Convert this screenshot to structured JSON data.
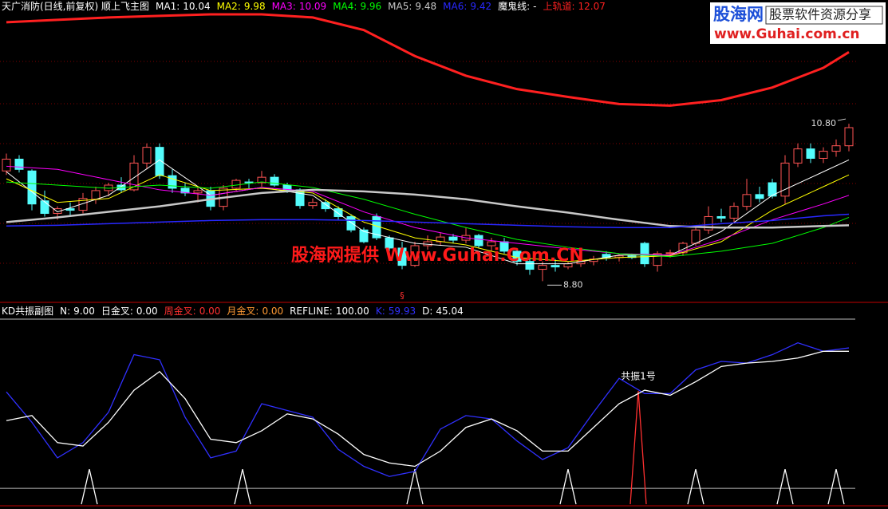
{
  "logo": {
    "brand": "股海网",
    "slogan": "股票软件资源分享",
    "url": "www.Guhai.com.cn"
  },
  "watermark": "股海网提供 Www.Guhai.Com.CN",
  "chart_data": [
    {
      "type": "candlestick",
      "title": "天广消防(日线,前复权) 顺上飞主图",
      "up_color": "#ff5454",
      "down_color": "#54fcfc",
      "ylim": [
        8.54,
        12.22
      ],
      "open": [
        10.2,
        10.35,
        10.2,
        9.82,
        9.66,
        9.72,
        9.7,
        9.84,
        9.95,
        10.02,
        9.96,
        10.3,
        10.5,
        10.14,
        9.98,
        9.92,
        9.95,
        9.75,
        9.98,
        10.06,
        10.05,
        10.12,
        10.02,
        9.96,
        9.76,
        9.8,
        9.72,
        9.62,
        9.45,
        9.62,
        9.35,
        9.22,
        9.0,
        9.25,
        9.3,
        9.36,
        9.32,
        9.38,
        9.25,
        9.3,
        9.18,
        9.05,
        8.95,
        9.0,
        8.98,
        9.02,
        9.05,
        9.14,
        9.1,
        9.12,
        9.28,
        9.0,
        9.15,
        9.16,
        9.28,
        9.45,
        9.62,
        9.6,
        9.75,
        9.9,
        10.05,
        9.88,
        10.3,
        10.48,
        10.36,
        10.45,
        10.52
      ],
      "high": [
        10.42,
        10.4,
        10.22,
        9.95,
        9.75,
        9.8,
        9.92,
        10.0,
        10.05,
        10.12,
        10.4,
        10.55,
        10.55,
        10.22,
        10.05,
        10.0,
        10.0,
        10.02,
        10.1,
        10.1,
        10.2,
        10.16,
        10.05,
        9.98,
        9.85,
        9.84,
        9.75,
        9.65,
        9.48,
        9.66,
        9.38,
        9.3,
        9.3,
        9.38,
        9.42,
        9.4,
        9.48,
        9.4,
        9.35,
        9.35,
        9.22,
        9.1,
        9.05,
        9.08,
        9.05,
        9.1,
        9.12,
        9.18,
        9.14,
        9.15,
        9.3,
        9.18,
        9.2,
        9.3,
        9.5,
        9.75,
        9.72,
        9.8,
        10.1,
        10.0,
        10.1,
        10.4,
        10.55,
        10.55,
        10.5,
        10.6,
        10.8
      ],
      "low": [
        10.15,
        10.18,
        9.7,
        9.62,
        9.58,
        9.64,
        9.66,
        9.78,
        9.88,
        9.92,
        9.94,
        10.22,
        10.1,
        9.92,
        9.88,
        9.8,
        9.7,
        9.7,
        9.94,
        9.98,
        10.0,
        10.0,
        9.92,
        9.72,
        9.72,
        9.68,
        9.58,
        9.42,
        9.28,
        9.32,
        9.18,
        8.95,
        8.98,
        9.2,
        9.25,
        9.28,
        9.28,
        9.22,
        9.18,
        9.15,
        9.0,
        8.88,
        8.8,
        8.92,
        8.95,
        8.98,
        9.0,
        9.06,
        9.05,
        9.08,
        8.98,
        8.92,
        9.1,
        9.12,
        9.25,
        9.4,
        9.55,
        9.55,
        9.7,
        9.8,
        9.85,
        9.78,
        10.25,
        10.3,
        10.3,
        10.38,
        10.45
      ],
      "close": [
        10.35,
        10.22,
        9.78,
        9.66,
        9.72,
        9.7,
        9.85,
        9.95,
        10.02,
        9.96,
        10.3,
        10.5,
        10.14,
        9.98,
        9.92,
        9.95,
        9.75,
        9.98,
        10.08,
        10.05,
        10.12,
        10.02,
        9.96,
        9.76,
        9.8,
        9.72,
        9.62,
        9.45,
        9.3,
        9.35,
        9.22,
        9.0,
        9.25,
        9.3,
        9.36,
        9.32,
        9.38,
        9.25,
        9.3,
        9.18,
        9.05,
        8.95,
        9.0,
        8.98,
        9.02,
        9.05,
        9.08,
        9.1,
        9.12,
        9.1,
        9.02,
        9.15,
        9.16,
        9.28,
        9.45,
        9.62,
        9.6,
        9.75,
        9.9,
        9.85,
        9.88,
        10.3,
        10.48,
        10.36,
        10.45,
        10.52,
        10.75
      ],
      "series": [
        {
          "name": "MA1:",
          "readout": "10.04",
          "color": "#ffffff",
          "width": 1,
          "x": [
            0,
            4,
            8,
            12,
            16,
            20,
            24,
            28,
            32,
            36,
            40,
            44,
            48,
            52,
            56,
            60,
            64,
            66
          ],
          "values": [
            10.19,
            9.68,
            9.89,
            10.34,
            9.89,
            9.99,
            9.89,
            9.43,
            9.28,
            9.23,
            9.02,
            9.02,
            9.13,
            9.13,
            9.43,
            9.89,
            10.19,
            10.34
          ]
        },
        {
          "name": "MA2:",
          "readout": "9.98",
          "color": "#ffff00",
          "width": 1,
          "x": [
            0,
            4,
            8,
            12,
            16,
            20,
            24,
            28,
            32,
            36,
            40,
            44,
            48,
            52,
            56,
            60,
            64,
            66
          ],
          "values": [
            10.1,
            9.8,
            9.85,
            10.15,
            9.95,
            9.98,
            9.92,
            9.55,
            9.35,
            9.26,
            9.1,
            9.05,
            9.1,
            9.12,
            9.3,
            9.7,
            10.0,
            10.15
          ]
        },
        {
          "name": "MA3:",
          "readout": "10.09",
          "color": "#ff00ff",
          "width": 1,
          "x": [
            0,
            4,
            8,
            12,
            16,
            20,
            24,
            28,
            32,
            36,
            40,
            44,
            48,
            52,
            56,
            60,
            64,
            66
          ],
          "values": [
            10.26,
            10.22,
            10.09,
            9.96,
            9.89,
            9.99,
            9.94,
            9.68,
            9.48,
            9.35,
            9.28,
            9.21,
            9.15,
            9.13,
            9.33,
            9.58,
            9.78,
            9.89
          ]
        },
        {
          "name": "MA4:",
          "readout": "9.96",
          "color": "#00ff00",
          "width": 1,
          "x": [
            0,
            4,
            8,
            12,
            16,
            20,
            24,
            28,
            32,
            36,
            40,
            44,
            48,
            52,
            56,
            60,
            64,
            66
          ],
          "values": [
            10.06,
            10.02,
            9.98,
            10.02,
            9.98,
            10.06,
            9.99,
            9.84,
            9.65,
            9.48,
            9.33,
            9.23,
            9.15,
            9.11,
            9.18,
            9.28,
            9.48,
            9.61
          ]
        },
        {
          "name": "MA5:",
          "readout": "9.48",
          "color": "#c8c8c8",
          "width": 2.5,
          "x": [
            0,
            4,
            8,
            12,
            16,
            20,
            24,
            28,
            32,
            36,
            40,
            44,
            48,
            52,
            56,
            60,
            64,
            66
          ],
          "values": [
            9.55,
            9.61,
            9.68,
            9.75,
            9.84,
            9.92,
            9.96,
            9.94,
            9.9,
            9.84,
            9.75,
            9.67,
            9.58,
            9.5,
            9.48,
            9.48,
            9.5,
            9.51
          ]
        },
        {
          "name": "MA6:",
          "readout": "9.42",
          "color": "#2828ff",
          "width": 1.5,
          "x": [
            0,
            4,
            8,
            12,
            16,
            20,
            24,
            28,
            32,
            36,
            40,
            44,
            48,
            52,
            56,
            60,
            64,
            66
          ],
          "values": [
            9.5,
            9.51,
            9.53,
            9.55,
            9.57,
            9.58,
            9.58,
            9.57,
            9.55,
            9.53,
            9.51,
            9.49,
            9.48,
            9.48,
            9.53,
            9.57,
            9.63,
            9.65
          ]
        },
        {
          "name": "魔鬼线:",
          "readout": "-",
          "color": "#ffffff",
          "width": 1,
          "x": [],
          "values": []
        },
        {
          "name": "上轨道:",
          "readout": "12.07",
          "color": "#ff2020",
          "width": 3,
          "x": [
            0,
            4,
            8,
            12,
            16,
            20,
            24,
            28,
            32,
            36,
            40,
            44,
            48,
            52,
            56,
            60,
            64,
            66
          ],
          "values": [
            12.09,
            12.12,
            12.15,
            12.17,
            12.19,
            12.19,
            12.15,
            11.99,
            11.66,
            11.41,
            11.24,
            11.14,
            11.05,
            11.03,
            11.1,
            11.26,
            11.51,
            11.71
          ]
        }
      ],
      "annotations": [
        {
          "x": 66,
          "value": 10.8,
          "label": "10.80"
        },
        {
          "x": 42,
          "value": 8.8,
          "label": "8.80"
        }
      ],
      "marker": {
        "text": "§",
        "x": 31
      }
    },
    {
      "type": "line",
      "title": "KD共振副图",
      "ylim": [
        -9.4,
        100
      ],
      "readouts": [
        {
          "name": "N:",
          "readout": "9.00",
          "color": "#ffffff"
        },
        {
          "name": "日金叉:",
          "readout": "0.00",
          "color": "#ffffff"
        },
        {
          "name": "周金叉:",
          "readout": "0.00",
          "color": "#ff3030"
        },
        {
          "name": "月金叉:",
          "readout": "0.00",
          "color": "#ff9933"
        },
        {
          "name": "REFLINE:",
          "readout": "100.00",
          "color": "#ffffff"
        }
      ],
      "hlines": [
        100,
        0
      ],
      "series": [
        {
          "name": "K:",
          "readout": "59.93",
          "color": "#3030ff",
          "width": 1.3,
          "x": [
            0,
            2,
            4,
            6,
            8,
            10,
            12,
            14,
            16,
            18,
            20,
            22,
            24,
            26,
            28,
            30,
            32,
            34,
            36,
            38,
            40,
            42,
            44,
            46,
            48,
            50,
            52,
            54,
            56,
            58,
            60,
            62,
            64,
            66
          ],
          "values": [
            57,
            39,
            18,
            27,
            45,
            79,
            76,
            42,
            18,
            22,
            50,
            46,
            42,
            23,
            13,
            7,
            10,
            35,
            43,
            41,
            28,
            17,
            24,
            45,
            65,
            56,
            56,
            70,
            75,
            74,
            79,
            86,
            81,
            83
          ]
        },
        {
          "name": "D:",
          "readout": "45.04",
          "color": "#ffffff",
          "width": 1.3,
          "x": [
            0,
            2,
            4,
            6,
            8,
            10,
            12,
            14,
            16,
            18,
            20,
            22,
            24,
            26,
            28,
            30,
            32,
            34,
            36,
            38,
            40,
            42,
            44,
            46,
            48,
            50,
            52,
            54,
            56,
            58,
            60,
            62,
            64,
            66
          ],
          "values": [
            40,
            43,
            27,
            25,
            39,
            58,
            69,
            53,
            29,
            27,
            34,
            44,
            41,
            32,
            20,
            15,
            13,
            22,
            36,
            41,
            34,
            22,
            22,
            36,
            50,
            58,
            55,
            63,
            72,
            74,
            75,
            77,
            81,
            81
          ]
        }
      ],
      "signals": [
        {
          "color": "#ffffff",
          "x": [
            6.5,
            18.5,
            32,
            44,
            54,
            61,
            65
          ],
          "values": [
            11.3,
            11.3,
            11.3,
            11.3,
            11.3,
            11.3,
            11.3
          ]
        },
        {
          "color": "#ff3030",
          "x": [
            49.5
          ],
          "values": [
            57.5
          ]
        }
      ],
      "annotation": {
        "label": "共振1号",
        "x": 49.5,
        "value": 57.5
      }
    }
  ]
}
